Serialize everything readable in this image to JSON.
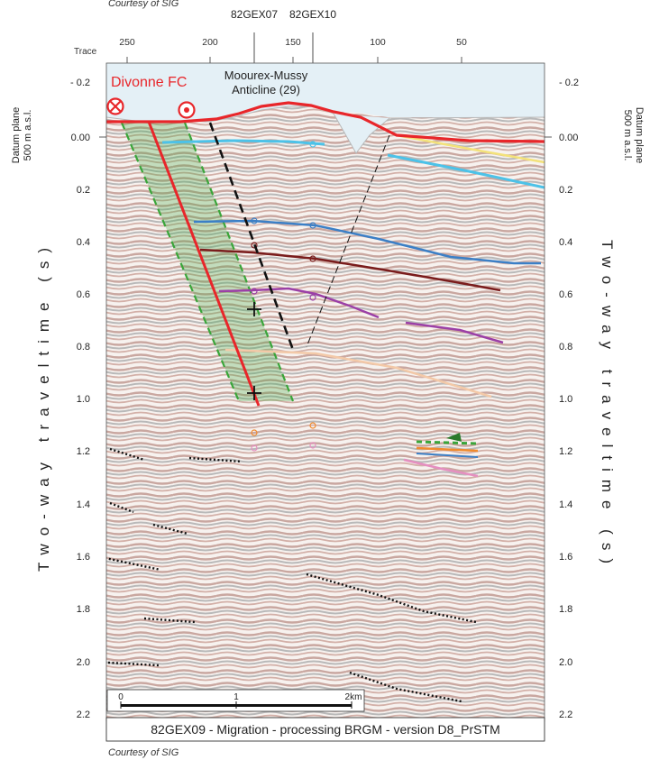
{
  "courtesy_top": "Courtesy of SIG",
  "courtesy_bottom": "Courtesy of SIG",
  "wells": [
    "82GEX07",
    "82GEX10"
  ],
  "trace_label": "Trace",
  "trace_ticks": [
    "250",
    "200",
    "150",
    "100",
    "50"
  ],
  "left_axis_title": "Two-way traveltime (s)",
  "right_axis_title": "Two-way traveltime (s)",
  "datum_left": [
    "Datum plane",
    "500 m a.s.l."
  ],
  "datum_right": [
    "Datum plane",
    "500 m a.s.l."
  ],
  "time_ticks": [
    "- 0.2",
    "0.00",
    "0.2",
    "0.4",
    "0.6",
    "0.8",
    "1.0",
    "1.2",
    "1.4",
    "1.6",
    "1.8",
    "2.0",
    "2.2"
  ],
  "fault_label": "Divonne FC",
  "anticline_label": [
    "Moourex-Mussy",
    "Anticline (29)"
  ],
  "scalebar": {
    "ticks": [
      "0",
      "1",
      "2km"
    ]
  },
  "caption": "82GEX09 - Migration - processing BRGM - version D8_PrSTM",
  "colors": {
    "fault_red": "#e8262a",
    "green_zone": "#3aa53a",
    "horizon_cyan": "#4cc2e8",
    "horizon_blue": "#3b7fc6",
    "horizon_darkred": "#7a1c1c",
    "horizon_purple": "#9b3fa6",
    "horizon_yellow": "#f3e27a",
    "horizon_orange": "#f08a2e",
    "horizon_pink": "#e58fc0"
  }
}
